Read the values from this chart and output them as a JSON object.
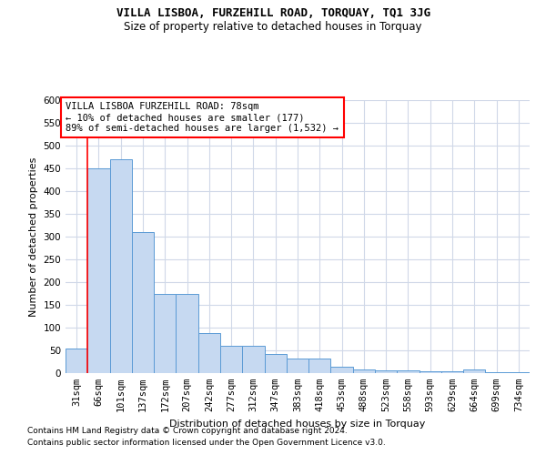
{
  "title1": "VILLA LISBOA, FURZEHILL ROAD, TORQUAY, TQ1 3JG",
  "title2": "Size of property relative to detached houses in Torquay",
  "xlabel": "Distribution of detached houses by size in Torquay",
  "ylabel": "Number of detached properties",
  "annotation_line1": "VILLA LISBOA FURZEHILL ROAD: 78sqm",
  "annotation_line2": "← 10% of detached houses are smaller (177)",
  "annotation_line3": "89% of semi-detached houses are larger (1,532) →",
  "footnote1": "Contains HM Land Registry data © Crown copyright and database right 2024.",
  "footnote2": "Contains public sector information licensed under the Open Government Licence v3.0.",
  "categories": [
    "31sqm",
    "66sqm",
    "101sqm",
    "137sqm",
    "172sqm",
    "207sqm",
    "242sqm",
    "277sqm",
    "312sqm",
    "347sqm",
    "383sqm",
    "418sqm",
    "453sqm",
    "488sqm",
    "523sqm",
    "558sqm",
    "593sqm",
    "629sqm",
    "664sqm",
    "699sqm",
    "734sqm"
  ],
  "values": [
    55,
    450,
    470,
    310,
    175,
    175,
    88,
    60,
    60,
    42,
    32,
    32,
    15,
    9,
    7,
    6,
    5,
    5,
    8,
    3,
    3
  ],
  "bar_color": "#c6d9f1",
  "bar_edge_color": "#5b9bd5",
  "red_line_x": 0.5,
  "ylim": [
    0,
    600
  ],
  "yticks": [
    0,
    50,
    100,
    150,
    200,
    250,
    300,
    350,
    400,
    450,
    500,
    550,
    600
  ],
  "background_color": "#ffffff",
  "grid_color": "#d0d8e8",
  "title1_fontsize": 9,
  "title2_fontsize": 8.5,
  "ylabel_fontsize": 8,
  "xlabel_fontsize": 8,
  "tick_fontsize": 7.5,
  "annot_fontsize": 7.5,
  "footnote_fontsize": 6.5
}
